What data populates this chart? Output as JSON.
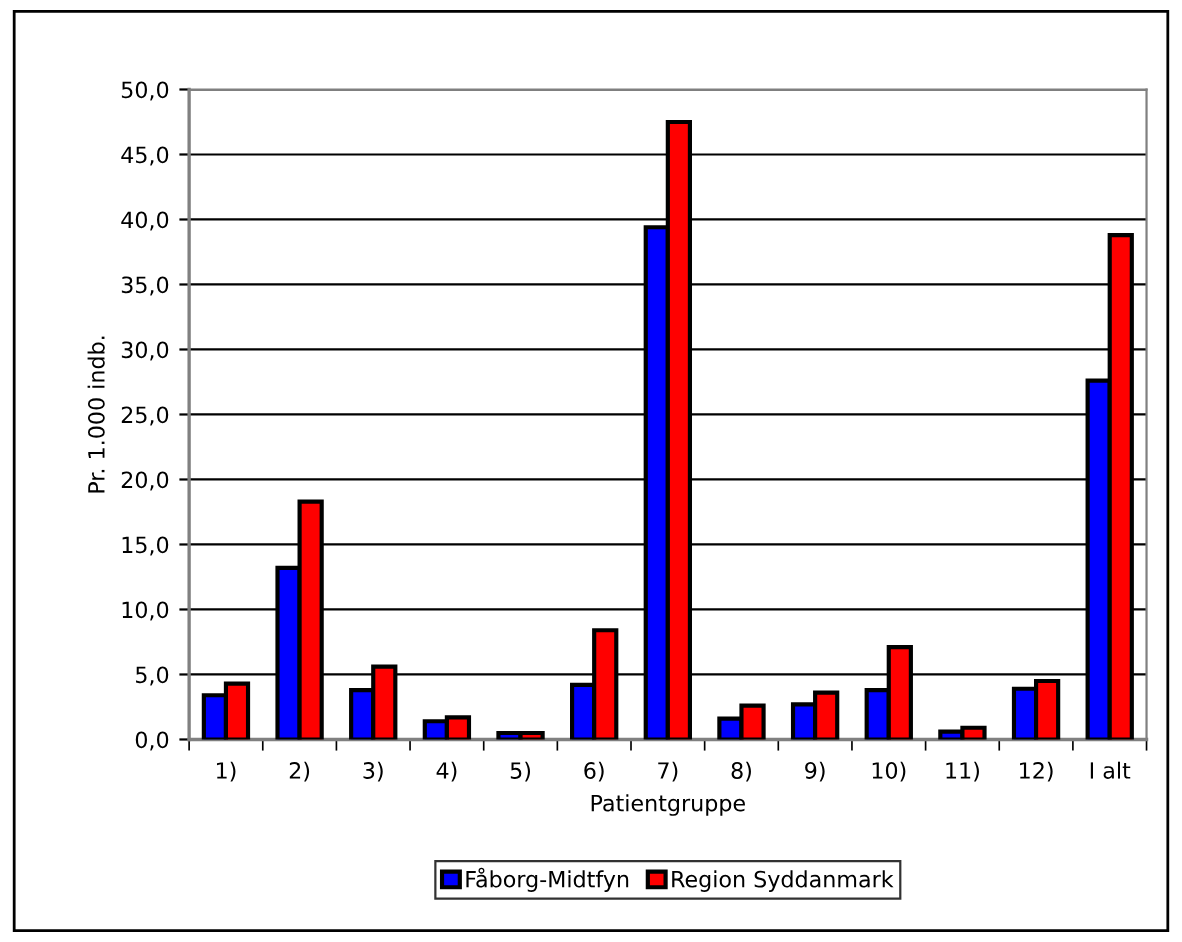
{
  "chart_data": {
    "type": "bar",
    "xlabel": "Patientgruppe",
    "ylabel": "Pr. 1.000 indb.",
    "categories": [
      "1)",
      "2)",
      "3)",
      "4)",
      "5)",
      "6)",
      "7)",
      "8)",
      "9)",
      "10)",
      "11)",
      "12)",
      "I alt"
    ],
    "series": [
      {
        "name": "Fåborg-Midtfyn",
        "color": "#0000ff",
        "values": [
          3.4,
          13.2,
          3.8,
          1.4,
          0.5,
          4.2,
          39.4,
          1.6,
          2.7,
          3.8,
          0.6,
          3.9,
          27.6
        ]
      },
      {
        "name": "Region Syddanmark",
        "color": "#ff0000",
        "values": [
          4.3,
          18.3,
          5.6,
          1.7,
          0.5,
          8.4,
          47.5,
          2.6,
          3.6,
          7.1,
          0.9,
          4.5,
          38.8
        ]
      }
    ],
    "ylim": [
      0,
      50
    ],
    "yticks": [
      {
        "value": 0,
        "label": "0,0"
      },
      {
        "value": 5,
        "label": "5,0"
      },
      {
        "value": 10,
        "label": "10,0"
      },
      {
        "value": 15,
        "label": "15,0"
      },
      {
        "value": 20,
        "label": "20,0"
      },
      {
        "value": 25,
        "label": "25,0"
      },
      {
        "value": 30,
        "label": "30,0"
      },
      {
        "value": 35,
        "label": "35,0"
      },
      {
        "value": 40,
        "label": "40,0"
      },
      {
        "value": 45,
        "label": "45,0"
      },
      {
        "value": 50,
        "label": "50,0"
      }
    ],
    "grid": "y",
    "legend": "bottom"
  }
}
